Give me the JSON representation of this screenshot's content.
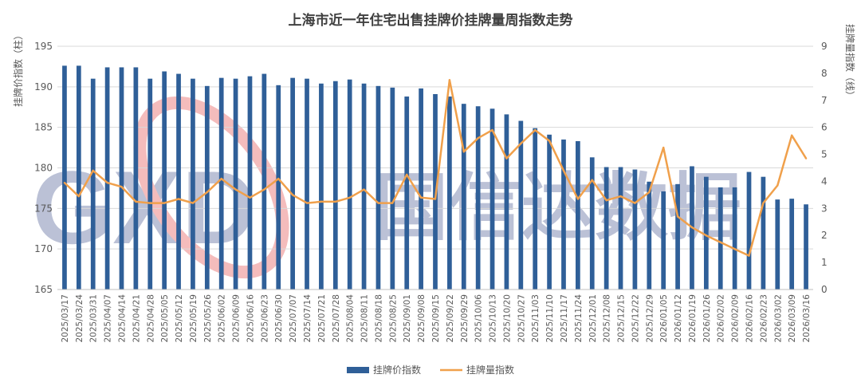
{
  "chart_data": {
    "type": "bar+line",
    "title": "上海市近一年住宅出售挂牌价挂牌量周指数走势",
    "y_left_label": "挂牌价指数（柱）",
    "y_right_label": "挂牌量指数（线）",
    "y_left_range": [
      165,
      195
    ],
    "y_left_ticks": [
      "165",
      "170",
      "175",
      "180",
      "185",
      "190",
      "195"
    ],
    "y_right_range": [
      0,
      9
    ],
    "y_right_ticks": [
      "0",
      "1",
      "2",
      "3",
      "4",
      "5",
      "6",
      "7",
      "8",
      "9"
    ],
    "legend_position": "bottom",
    "watermark": "GXD 国信达数据",
    "colors": {
      "bar": "#2f5f98",
      "line": "#f0a04b",
      "grid": "#d9d9d9"
    },
    "categories": [
      "2025/03/17",
      "2025/03/24",
      "2025/03/31",
      "2025/04/07",
      "2025/04/14",
      "2025/04/21",
      "2025/04/28",
      "2025/05/05",
      "2025/05/12",
      "2025/05/19",
      "2025/05/26",
      "2025/06/02",
      "2025/06/09",
      "2025/06/16",
      "2025/06/23",
      "2025/06/30",
      "2025/07/07",
      "2025/07/14",
      "2025/07/21",
      "2025/07/28",
      "2025/08/04",
      "2025/08/11",
      "2025/08/18",
      "2025/08/25",
      "2025/09/01",
      "2025/09/08",
      "2025/09/15",
      "2025/09/22",
      "2025/09/29",
      "2025/10/06",
      "2025/10/13",
      "2025/10/20",
      "2025/10/27",
      "2025/11/03",
      "2025/11/10",
      "2025/11/17",
      "2025/11/24",
      "2025/12/01",
      "2025/12/08",
      "2025/12/15",
      "2025/12/22",
      "2025/12/29",
      "2026/01/05",
      "2026/01/12",
      "2026/01/19",
      "2026/01/26",
      "2026/02/02",
      "2026/02/09",
      "2026/02/16",
      "2026/02/23",
      "2026/03/02",
      "2026/03/09",
      "2026/03/16"
    ],
    "series": [
      {
        "name": "挂牌价指数",
        "type": "bar",
        "axis": "left",
        "values": [
          192.6,
          192.6,
          191.0,
          192.4,
          192.4,
          192.4,
          191.0,
          191.9,
          191.6,
          191.0,
          190.1,
          191.1,
          191.0,
          191.3,
          191.6,
          190.2,
          191.1,
          191.0,
          190.4,
          190.7,
          190.9,
          190.4,
          190.1,
          189.9,
          188.8,
          189.8,
          189.1,
          188.8,
          187.9,
          187.6,
          187.3,
          186.6,
          185.8,
          184.9,
          184.1,
          183.5,
          183.3,
          181.3,
          180.1,
          180.1,
          179.8,
          178.3,
          177.1,
          178.0,
          180.2,
          178.9,
          177.6,
          177.6,
          179.5,
          178.9,
          176.1,
          176.2,
          175.5
        ]
      },
      {
        "name": "挂牌量指数",
        "type": "line",
        "axis": "right",
        "values": [
          3.95,
          3.45,
          4.4,
          3.95,
          3.8,
          3.25,
          3.2,
          3.2,
          3.35,
          3.2,
          3.6,
          4.1,
          3.7,
          3.4,
          3.7,
          4.1,
          3.5,
          3.2,
          3.25,
          3.25,
          3.4,
          3.7,
          3.2,
          3.2,
          4.25,
          3.4,
          3.35,
          7.75,
          5.1,
          5.6,
          5.9,
          4.85,
          5.4,
          5.9,
          5.5,
          4.4,
          3.35,
          4.05,
          3.3,
          3.45,
          3.2,
          3.6,
          5.25,
          2.7,
          2.3,
          2.0,
          1.75,
          1.5,
          1.25,
          3.2,
          3.85,
          5.7,
          4.85
        ]
      }
    ]
  }
}
